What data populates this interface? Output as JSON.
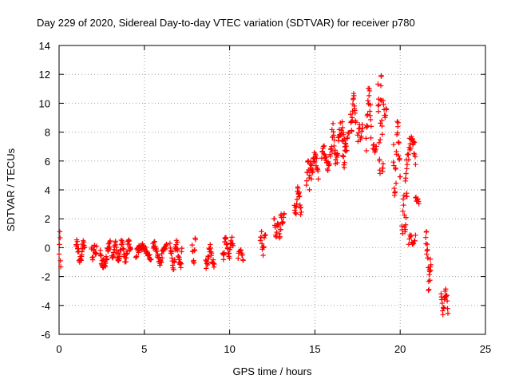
{
  "chart_data": {
    "type": "scatter",
    "title": "Day 229 of 2020, Sidereal Day-to-day VTEC variation (SDTVAR) for receiver p780",
    "xlabel": "GPS time / hours",
    "ylabel": "SDTVAR / TECUs",
    "xlim": [
      0,
      25
    ],
    "ylim": [
      -6,
      14
    ],
    "xticks": [
      "0",
      "5",
      "10",
      "15",
      "20",
      "25"
    ],
    "yticks": [
      "-6",
      "-4",
      "-2",
      "0",
      "2",
      "4",
      "6",
      "8",
      "10",
      "12",
      "14"
    ],
    "grid": true,
    "marker": "+",
    "color": "#ff0000",
    "segments": [
      {
        "t0": 0.0,
        "t1": 0.1,
        "min": -2.0,
        "max": 1.5,
        "n": 6
      },
      {
        "t0": 1.0,
        "t1": 1.5,
        "min": -1.2,
        "max": 0.6,
        "n": 30
      },
      {
        "t0": 1.9,
        "t1": 2.2,
        "min": -0.9,
        "max": 0.4,
        "n": 14
      },
      {
        "t0": 2.4,
        "t1": 3.0,
        "min": -1.5,
        "max": 0.6,
        "n": 36
      },
      {
        "t0": 3.1,
        "t1": 3.5,
        "min": -1.0,
        "max": 0.5,
        "n": 20
      },
      {
        "t0": 3.5,
        "t1": 4.2,
        "min": -1.2,
        "max": 0.7,
        "n": 36
      },
      {
        "t0": 4.5,
        "t1": 5.4,
        "min": -1.0,
        "max": 0.3,
        "n": 40
      },
      {
        "t0": 5.5,
        "t1": 6.3,
        "min": -1.3,
        "max": 0.5,
        "n": 38
      },
      {
        "t0": 6.5,
        "t1": 7.2,
        "min": -1.6,
        "max": 0.6,
        "n": 36
      },
      {
        "t0": 7.8,
        "t1": 8.0,
        "min": -1.2,
        "max": 1.0,
        "n": 10
      },
      {
        "t0": 8.6,
        "t1": 9.1,
        "min": -1.6,
        "max": 0.4,
        "n": 24
      },
      {
        "t0": 9.6,
        "t1": 10.2,
        "min": -1.0,
        "max": 0.9,
        "n": 30
      },
      {
        "t0": 10.5,
        "t1": 10.8,
        "min": -1.0,
        "max": 0.0,
        "n": 12
      },
      {
        "t0": 11.8,
        "t1": 12.1,
        "min": -0.6,
        "max": 1.4,
        "n": 14
      },
      {
        "t0": 12.6,
        "t1": 13.0,
        "min": 0.6,
        "max": 2.2,
        "n": 18
      },
      {
        "t0": 13.0,
        "t1": 13.2,
        "min": 1.6,
        "max": 2.7,
        "n": 10
      },
      {
        "t0": 13.8,
        "t1": 14.2,
        "min": 2.2,
        "max": 4.5,
        "n": 22
      },
      {
        "t0": 14.5,
        "t1": 14.8,
        "min": 4.0,
        "max": 6.4,
        "n": 16
      },
      {
        "t0": 14.8,
        "t1": 15.2,
        "min": 4.4,
        "max": 6.7,
        "n": 20
      },
      {
        "t0": 15.4,
        "t1": 16.0,
        "min": 5.2,
        "max": 7.2,
        "n": 26
      },
      {
        "t0": 16.0,
        "t1": 16.8,
        "min": 5.5,
        "max": 8.8,
        "n": 40
      },
      {
        "t0": 16.6,
        "t1": 17.0,
        "min": 6.5,
        "max": 8.9,
        "n": 16
      },
      {
        "t0": 17.1,
        "t1": 17.4,
        "min": 8.0,
        "max": 10.8,
        "n": 20
      },
      {
        "t0": 17.5,
        "t1": 17.8,
        "min": 7.0,
        "max": 9.0,
        "n": 12
      },
      {
        "t0": 18.0,
        "t1": 18.3,
        "min": 6.0,
        "max": 11.6,
        "n": 20
      },
      {
        "t0": 18.4,
        "t1": 18.6,
        "min": 6.4,
        "max": 7.2,
        "n": 8
      },
      {
        "t0": 18.7,
        "t1": 19.0,
        "min": 4.5,
        "max": 12.1,
        "n": 24
      },
      {
        "t0": 19.0,
        "t1": 19.2,
        "min": 8.6,
        "max": 10.6,
        "n": 8
      },
      {
        "t0": 19.6,
        "t1": 20.0,
        "min": 3.0,
        "max": 9.5,
        "n": 24
      },
      {
        "t0": 20.1,
        "t1": 20.4,
        "min": 0.6,
        "max": 4.2,
        "n": 16
      },
      {
        "t0": 20.3,
        "t1": 20.9,
        "min": 4.5,
        "max": 8.3,
        "n": 28
      },
      {
        "t0": 20.5,
        "t1": 20.9,
        "min": 0.0,
        "max": 1.0,
        "n": 12
      },
      {
        "t0": 20.9,
        "t1": 21.1,
        "min": 3.0,
        "max": 3.6,
        "n": 8
      },
      {
        "t0": 21.5,
        "t1": 21.8,
        "min": -3.5,
        "max": 2.0,
        "n": 22
      },
      {
        "t0": 22.4,
        "t1": 22.8,
        "min": -4.7,
        "max": -2.7,
        "n": 20
      }
    ]
  }
}
